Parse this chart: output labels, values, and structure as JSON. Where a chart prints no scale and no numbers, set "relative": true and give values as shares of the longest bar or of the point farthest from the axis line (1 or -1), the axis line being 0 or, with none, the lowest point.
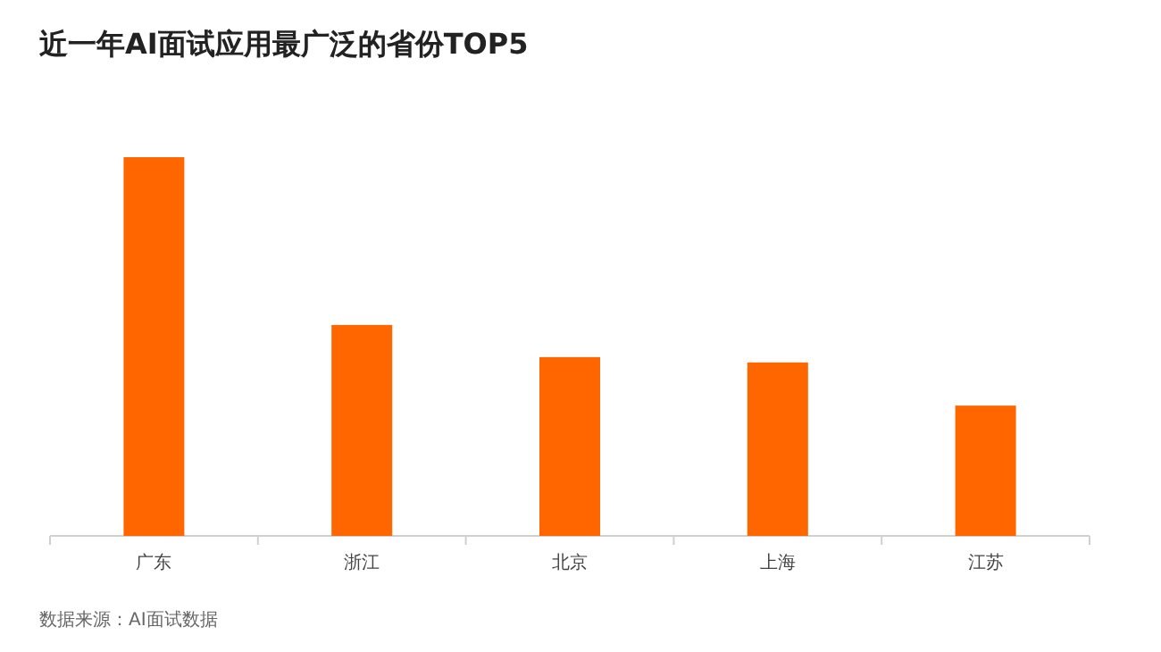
{
  "chart_data": {
    "type": "bar",
    "title": "近一年AI面试应用最广泛的省份TOP5",
    "categories": [
      "广东",
      "浙江",
      "北京",
      "上海",
      "江苏"
    ],
    "values": [
      1,
      0.557,
      0.472,
      0.458,
      0.344
    ],
    "color": "#ff6600",
    "relative": true,
    "annotations": [
      "数据来源：AI面试数据"
    ]
  }
}
